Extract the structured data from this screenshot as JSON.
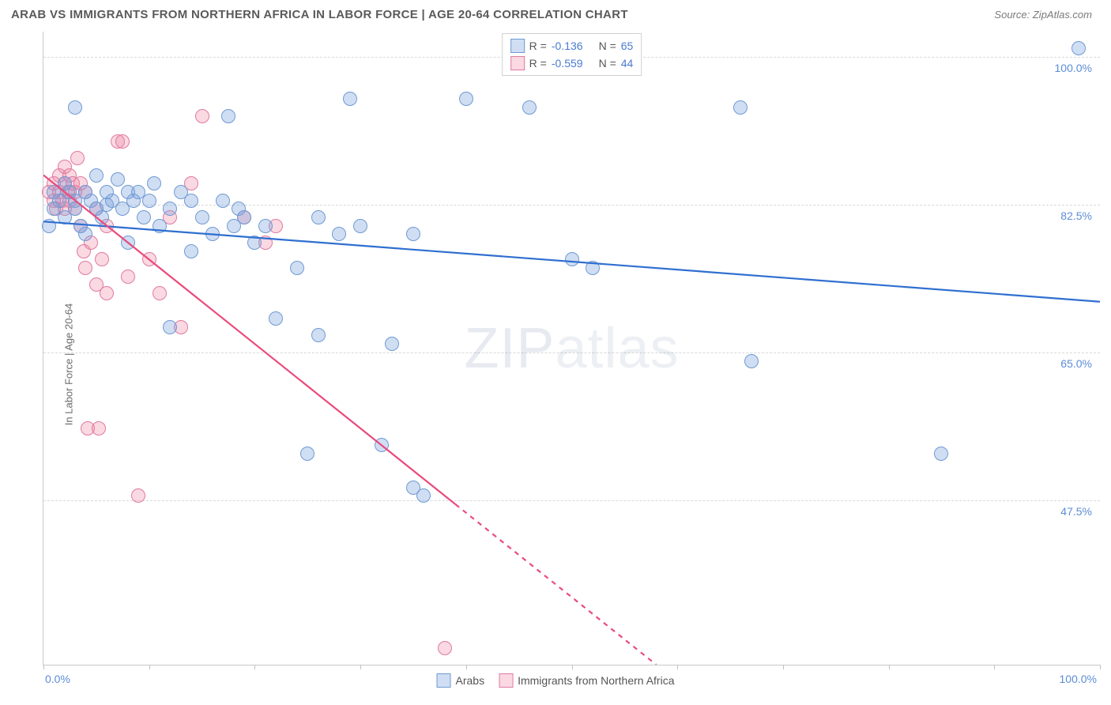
{
  "header": {
    "title": "ARAB VS IMMIGRANTS FROM NORTHERN AFRICA IN LABOR FORCE | AGE 20-64 CORRELATION CHART",
    "source_label": "Source:",
    "source_value": "ZipAtlas.com"
  },
  "chart": {
    "type": "scatter",
    "ylabel": "In Labor Force | Age 20-64",
    "xlim": [
      0,
      100
    ],
    "ylim": [
      28,
      103
    ],
    "gridlines_y": [
      47.5,
      65.0,
      82.5,
      100.0
    ],
    "ytick_labels": [
      "47.5%",
      "65.0%",
      "82.5%",
      "100.0%"
    ],
    "xticks": [
      0,
      10,
      20,
      30,
      40,
      50,
      60,
      70,
      80,
      90,
      100
    ],
    "xtick_label_left": "0.0%",
    "xtick_label_right": "100.0%",
    "background_color": "#ffffff",
    "grid_color": "#d8d8d8",
    "axis_color": "#c9c9c9",
    "label_color": "#5b8dd6",
    "watermark": "ZIPatlas",
    "series": {
      "arabs": {
        "label": "Arabs",
        "fill": "rgba(120,160,220,0.35)",
        "stroke": "#6f9ad3",
        "trend_color": "#2f6fd0",
        "trend": {
          "x1": 0,
          "y1": 80.5,
          "x2": 100,
          "y2": 71.0
        },
        "R_label": "R =",
        "R": "-0.136",
        "N_label": "N =",
        "N": "65",
        "marker_radius": 9,
        "points": [
          [
            0.5,
            80
          ],
          [
            1,
            82
          ],
          [
            1,
            84
          ],
          [
            1.5,
            83
          ],
          [
            2,
            81
          ],
          [
            2,
            85
          ],
          [
            2.5,
            84
          ],
          [
            3,
            83
          ],
          [
            3,
            82
          ],
          [
            3.5,
            80
          ],
          [
            4,
            84
          ],
          [
            4,
            79
          ],
          [
            4.5,
            83
          ],
          [
            5,
            82
          ],
          [
            5,
            86
          ],
          [
            5.5,
            81
          ],
          [
            6,
            82.5
          ],
          [
            6,
            84
          ],
          [
            6.5,
            83
          ],
          [
            7,
            85.5
          ],
          [
            7.5,
            82
          ],
          [
            8,
            84
          ],
          [
            8,
            78
          ],
          [
            8.5,
            83
          ],
          [
            9,
            84
          ],
          [
            9.5,
            81
          ],
          [
            10,
            83
          ],
          [
            10.5,
            85
          ],
          [
            11,
            80
          ],
          [
            12,
            82
          ],
          [
            12,
            68
          ],
          [
            13,
            84
          ],
          [
            14,
            83
          ],
          [
            14,
            77
          ],
          [
            15,
            81
          ],
          [
            16,
            79
          ],
          [
            17,
            83
          ],
          [
            17.5,
            93
          ],
          [
            18,
            80
          ],
          [
            18.5,
            82
          ],
          [
            19,
            81
          ],
          [
            20,
            78
          ],
          [
            21,
            80
          ],
          [
            22,
            69
          ],
          [
            24,
            75
          ],
          [
            25,
            53
          ],
          [
            26,
            81
          ],
          [
            26,
            67
          ],
          [
            28,
            79
          ],
          [
            29,
            95
          ],
          [
            30,
            80
          ],
          [
            32,
            54
          ],
          [
            33,
            66
          ],
          [
            35,
            79
          ],
          [
            36,
            48
          ],
          [
            40,
            95
          ],
          [
            46,
            94
          ],
          [
            35,
            49
          ],
          [
            50,
            76
          ],
          [
            52,
            75
          ],
          [
            66,
            94
          ],
          [
            67,
            64
          ],
          [
            85,
            53
          ],
          [
            98,
            101
          ],
          [
            3,
            94
          ]
        ]
      },
      "immigrants": {
        "label": "Immigrants from Northern Africa",
        "fill": "rgba(240,130,160,0.30)",
        "stroke": "#e07aa0",
        "trend_color": "#e94b7b",
        "trend_solid": {
          "x1": 0,
          "y1": 86.0,
          "x2": 39,
          "y2": 47.0
        },
        "trend_dashed": {
          "x1": 39,
          "y1": 47.0,
          "x2": 58,
          "y2": 28.0
        },
        "R_label": "R =",
        "R": "-0.559",
        "N_label": "N =",
        "N": "44",
        "marker_radius": 9,
        "points": [
          [
            0.5,
            84
          ],
          [
            1,
            83
          ],
          [
            1,
            85
          ],
          [
            1.2,
            82
          ],
          [
            1.5,
            86
          ],
          [
            1.5,
            84
          ],
          [
            1.8,
            83
          ],
          [
            2,
            85
          ],
          [
            2,
            87
          ],
          [
            2,
            82
          ],
          [
            2.3,
            84
          ],
          [
            2.5,
            83
          ],
          [
            2.5,
            86
          ],
          [
            2.8,
            85
          ],
          [
            3,
            84
          ],
          [
            3,
            82
          ],
          [
            3.2,
            88
          ],
          [
            3.5,
            85
          ],
          [
            3.5,
            80
          ],
          [
            3.8,
            77
          ],
          [
            4,
            84
          ],
          [
            4,
            75
          ],
          [
            4.5,
            78
          ],
          [
            5,
            82
          ],
          [
            5,
            73
          ],
          [
            5.5,
            76
          ],
          [
            4.2,
            56
          ],
          [
            5.2,
            56
          ],
          [
            6,
            80
          ],
          [
            6,
            72
          ],
          [
            7,
            90
          ],
          [
            7.5,
            90
          ],
          [
            8,
            74
          ],
          [
            9,
            48
          ],
          [
            10,
            76
          ],
          [
            11,
            72
          ],
          [
            12,
            81
          ],
          [
            13,
            68
          ],
          [
            14,
            85
          ],
          [
            15,
            93
          ],
          [
            19,
            81
          ],
          [
            21,
            78
          ],
          [
            22,
            80
          ],
          [
            38,
            30
          ]
        ]
      }
    }
  }
}
